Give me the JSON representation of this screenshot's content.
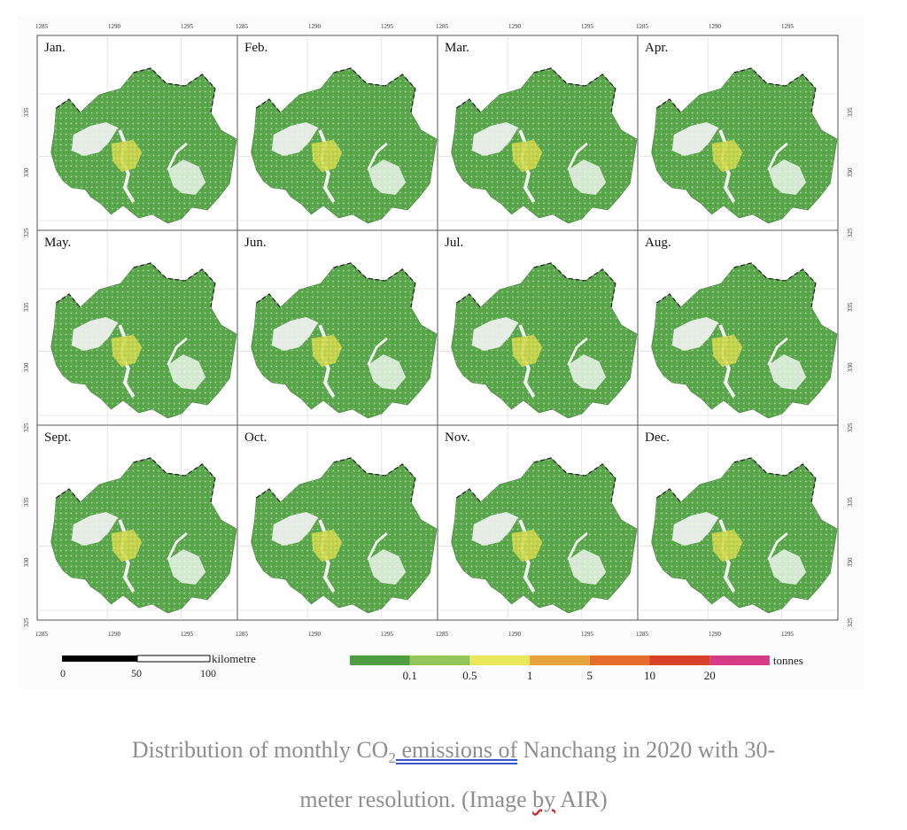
{
  "months": [
    "Jan.",
    "Feb.",
    "Mar.",
    "Apr.",
    "May.",
    "Jun.",
    "Jul.",
    "Aug.",
    "Sept.",
    "Oct.",
    "Nov.",
    "Dec."
  ],
  "axis": {
    "x_ticks": [
      "1285 ",
      "1290 ",
      "1295 "
    ],
    "y_ticks": [
      "335 ",
      "330 ",
      "325 "
    ]
  },
  "scale_bar": {
    "unit": "kilometre",
    "ticks": [
      "0",
      "50",
      "100"
    ]
  },
  "legend": {
    "unit": "tonnes",
    "colors": [
      "#4f9d43",
      "#93c45a",
      "#e8e85a",
      "#e9a33c",
      "#e56d2d",
      "#d8402a",
      "#d63c86"
    ],
    "labels": [
      "0.1",
      "0.5",
      "1",
      "5",
      "10",
      "20"
    ]
  },
  "caption": {
    "part1": "Distribution of monthly CO",
    "sub": "2",
    "part2": " emissions  of",
    "part3": " Nanchang in 2020 with 30-",
    "line2_a": "meter resolution. (Image ",
    "line2_b": "by",
    "line2_c": " AIR)"
  }
}
